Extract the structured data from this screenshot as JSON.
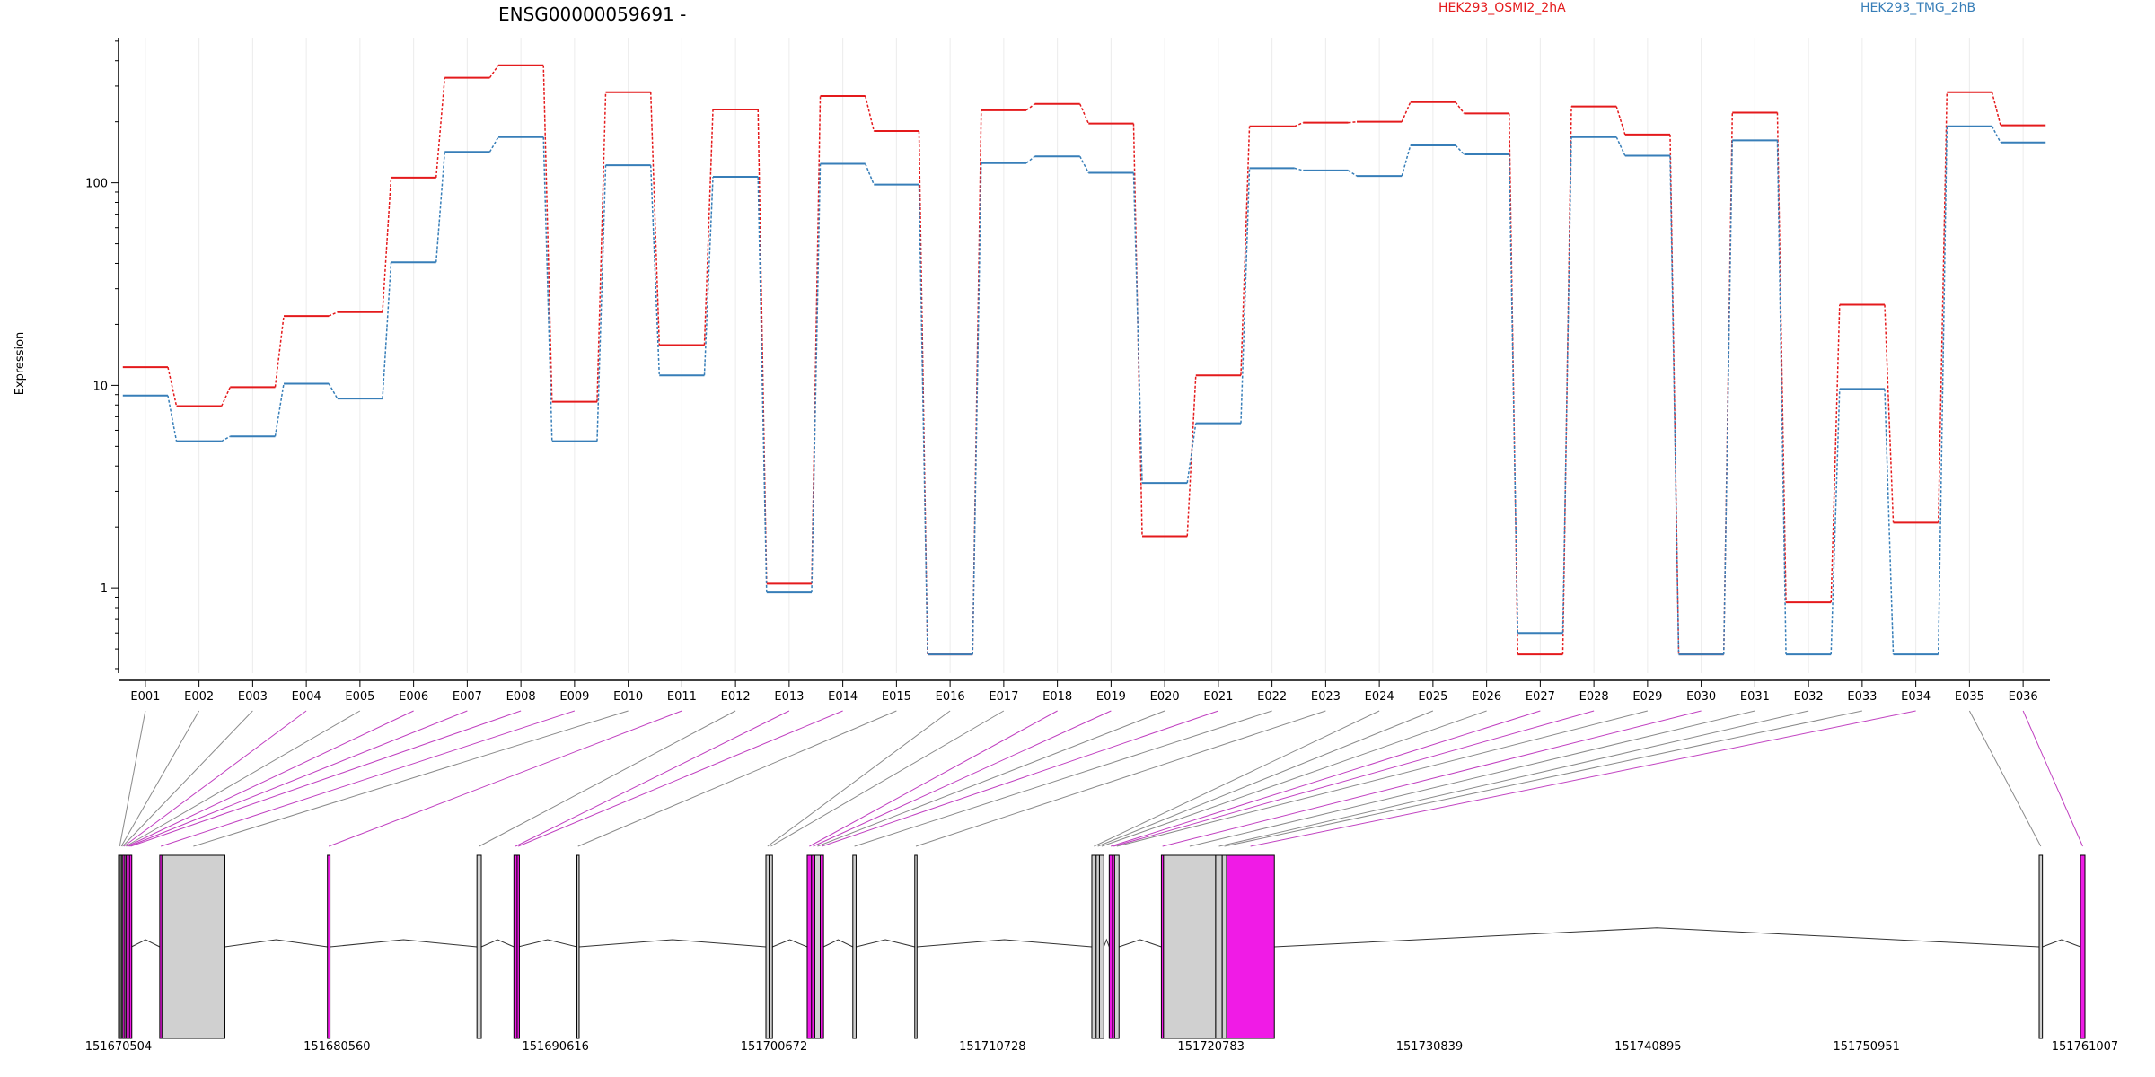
{
  "title": "ENSG00000059691 -",
  "chart_data": [
    {
      "type": "line",
      "title": "ENSG00000059691 -",
      "ylabel": "Expression",
      "xlabel": "",
      "yscale": "log",
      "ylim": [
        0.38,
        520
      ],
      "yticks": [
        1,
        10,
        100
      ],
      "ytick_labels": [
        "1",
        "10",
        "100"
      ],
      "grid": "vertical only",
      "legend_placement": "top",
      "categories": [
        "E001",
        "E002",
        "E003",
        "E004",
        "E005",
        "E006",
        "E007",
        "E008",
        "E009",
        "E010",
        "E011",
        "E012",
        "E013",
        "E014",
        "E015",
        "E016",
        "E017",
        "E018",
        "E019",
        "E020",
        "E021",
        "E022",
        "E023",
        "E024",
        "E025",
        "E026",
        "E027",
        "E028",
        "E029",
        "E030",
        "E031",
        "E032",
        "E033",
        "E034",
        "E035",
        "E036"
      ],
      "series": [
        {
          "name": "HEK293_OSMI2_2hA",
          "color": "#e41a1c",
          "values": [
            12.3,
            7.9,
            9.8,
            22.0,
            23.0,
            106,
            330,
            380,
            8.3,
            280,
            15.8,
            230,
            1.05,
            268,
            180,
            0.47,
            228,
            245,
            196,
            1.8,
            11.2,
            190,
            198,
            200,
            250,
            220,
            0.47,
            238,
            173,
            0.47,
            222,
            0.85,
            25.0,
            2.1,
            280,
            192
          ]
        },
        {
          "name": "HEK293_TMG_2hB",
          "color": "#377eb8",
          "values": [
            8.9,
            5.3,
            5.6,
            10.2,
            8.6,
            40.5,
            142,
            168,
            5.3,
            122,
            11.2,
            107,
            0.95,
            124,
            98,
            0.47,
            125,
            135,
            112,
            3.3,
            6.5,
            118,
            115,
            108,
            153,
            138,
            0.6,
            168,
            136,
            0.47,
            162,
            0.47,
            9.6,
            0.47,
            190,
            158
          ]
        }
      ]
    },
    {
      "type": "gene_model",
      "xlim": [
        151670504,
        151761007
      ],
      "ticks": [
        151670504,
        151680560,
        151690616,
        151700672,
        151710728,
        151720783,
        151730839,
        151740895,
        151750951,
        151761007
      ],
      "tick_labels": [
        "151670504",
        "151680560",
        "151690616",
        "151700672",
        "151710728",
        "151720783",
        "151730839",
        "151740895",
        "151750951",
        "151761007"
      ],
      "exons": [
        {
          "id": "E001",
          "start": 151670504,
          "end": 151670580,
          "highlight": false
        },
        {
          "id": "E002",
          "start": 151670580,
          "end": 151670640,
          "highlight": false
        },
        {
          "id": "E003",
          "start": 151670640,
          "end": 151670700,
          "highlight": false
        },
        {
          "id": "E004",
          "start": 151670700,
          "end": 151670790,
          "highlight": true
        },
        {
          "id": "E005",
          "start": 151670790,
          "end": 151670850,
          "highlight": false
        },
        {
          "id": "E006",
          "start": 151670850,
          "end": 151670930,
          "highlight": true
        },
        {
          "id": "E007",
          "start": 151670930,
          "end": 151671010,
          "highlight": true
        },
        {
          "id": "E008",
          "start": 151671010,
          "end": 151671100,
          "highlight": true
        },
        {
          "id": "E009",
          "start": 151672400,
          "end": 151672500,
          "highlight": true
        },
        {
          "id": "E010",
          "start": 151672500,
          "end": 151675400,
          "highlight": false
        },
        {
          "id": "E011",
          "start": 151680120,
          "end": 151680240,
          "highlight": true
        },
        {
          "id": "E012",
          "start": 151687000,
          "end": 151687200,
          "highlight": false
        },
        {
          "id": "E013",
          "start": 151688700,
          "end": 151688850,
          "highlight": true
        },
        {
          "id": "E014",
          "start": 151688850,
          "end": 151688900,
          "highlight": true
        },
        {
          "id": "E015",
          "start": 151691600,
          "end": 151691700,
          "highlight": false
        },
        {
          "id": "E016",
          "start": 151700300,
          "end": 151700450,
          "highlight": false
        },
        {
          "id": "E017",
          "start": 151700450,
          "end": 151700600,
          "highlight": false
        },
        {
          "id": "E018",
          "start": 151702200,
          "end": 151702400,
          "highlight": true
        },
        {
          "id": "E019",
          "start": 151702400,
          "end": 151702550,
          "highlight": true
        },
        {
          "id": "E020",
          "start": 151702550,
          "end": 151702800,
          "highlight": false
        },
        {
          "id": "E021",
          "start": 151702800,
          "end": 151702950,
          "highlight": true
        },
        {
          "id": "E022",
          "start": 151704300,
          "end": 151704450,
          "highlight": false
        },
        {
          "id": "E023",
          "start": 151707150,
          "end": 151707250,
          "highlight": false
        },
        {
          "id": "E024",
          "start": 151715300,
          "end": 151715500,
          "highlight": false
        },
        {
          "id": "E025",
          "start": 151715500,
          "end": 151715650,
          "highlight": false
        },
        {
          "id": "E026",
          "start": 151715650,
          "end": 151715850,
          "highlight": false
        },
        {
          "id": "E027",
          "start": 151716100,
          "end": 151716250,
          "highlight": true
        },
        {
          "id": "E028",
          "start": 151716250,
          "end": 151716350,
          "highlight": true
        },
        {
          "id": "E029",
          "start": 151716350,
          "end": 151716550,
          "highlight": false
        },
        {
          "id": "E030",
          "start": 151718500,
          "end": 151718600,
          "highlight": true
        },
        {
          "id": "E031",
          "start": 151718600,
          "end": 151721000,
          "highlight": false
        },
        {
          "id": "E032",
          "start": 151721000,
          "end": 151721300,
          "highlight": false
        },
        {
          "id": "E033",
          "start": 151721300,
          "end": 151721500,
          "highlight": false
        },
        {
          "id": "E034",
          "start": 151721500,
          "end": 151723700,
          "highlight": true
        },
        {
          "id": "E035",
          "start": 151758900,
          "end": 151759050,
          "highlight": false
        },
        {
          "id": "E036",
          "start": 151760800,
          "end": 151761007,
          "highlight": true
        }
      ],
      "highlight_color": "#f01be6"
    }
  ]
}
